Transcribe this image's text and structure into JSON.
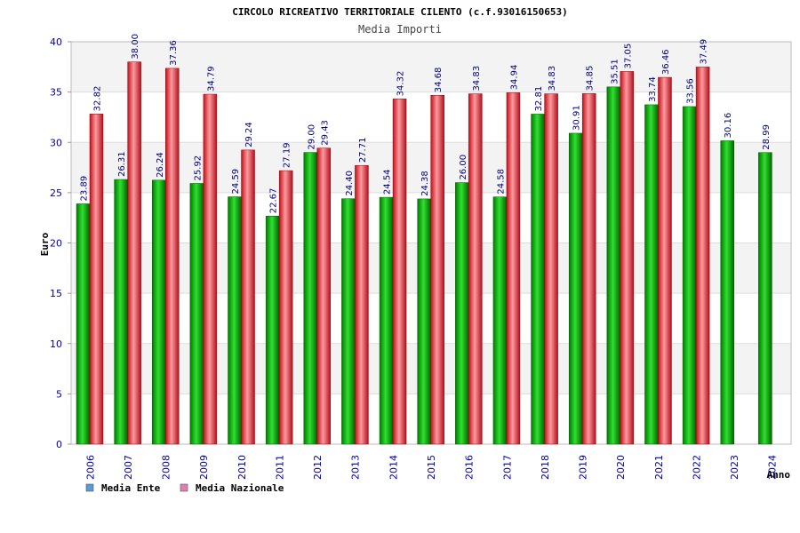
{
  "chart_data": {
    "type": "bar",
    "title": "CIRCOLO RICREATIVO TERRITORIALE CILENTO (c.f.93016150653)",
    "subtitle": "Media Importi",
    "xlabel": "Anno",
    "ylabel": "Euro",
    "ylim": [
      0,
      40
    ],
    "yticks": [
      0,
      5,
      10,
      15,
      20,
      25,
      30,
      35,
      40
    ],
    "grid": true,
    "legend_position": "bottom-left",
    "categories": [
      "2006",
      "2007",
      "2008",
      "2009",
      "2010",
      "2011",
      "2012",
      "2013",
      "2014",
      "2015",
      "2016",
      "2017",
      "2018",
      "2019",
      "2020",
      "2021",
      "2022",
      "2023",
      "2024"
    ],
    "series": [
      {
        "name": "Media Ente",
        "legend_color": "#5b9bd5",
        "bar_color": "#0aa80a",
        "values": [
          23.89,
          26.31,
          26.24,
          25.92,
          24.59,
          22.67,
          29.0,
          24.4,
          24.54,
          24.38,
          26.0,
          24.58,
          32.81,
          30.91,
          35.51,
          33.74,
          33.56,
          30.16,
          28.99
        ],
        "labels": [
          "23.89",
          "26.31",
          "26.24",
          "25.92",
          "24.59",
          "22.67",
          "29.00",
          "24.40",
          "24.54",
          "24.38",
          "26.00",
          "24.58",
          "32.81",
          "30.91",
          "35.51",
          "33.74",
          "33.56",
          "30.16",
          "28.99"
        ]
      },
      {
        "name": "Media Nazionale",
        "legend_color": "#e080b0",
        "bar_color": "#e8202a",
        "values": [
          32.82,
          38.0,
          37.36,
          34.79,
          29.24,
          27.19,
          29.43,
          27.71,
          34.32,
          34.68,
          34.83,
          34.94,
          34.83,
          34.85,
          37.05,
          36.46,
          37.49,
          null,
          null
        ],
        "labels": [
          "32.82",
          "38.00",
          "37.36",
          "34.79",
          "29.24",
          "27.19",
          "29.43",
          "27.71",
          "34.32",
          "34.68",
          "34.83",
          "34.94",
          "34.83",
          "34.85",
          "37.05",
          "36.46",
          "37.49",
          null,
          null
        ]
      }
    ]
  }
}
